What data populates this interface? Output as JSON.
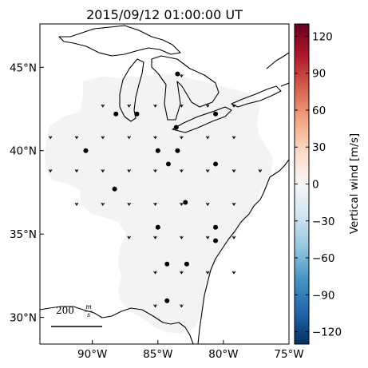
{
  "chart_data": {
    "type": "map-quiver",
    "title": "2015/09/12 01:00:00 UT",
    "xlim": [
      -94,
      -75
    ],
    "ylim": [
      28.4,
      47.6
    ],
    "x_ticks": [
      {
        "value": -90,
        "label": "90°W"
      },
      {
        "value": -85,
        "label": "85°W"
      },
      {
        "value": -80,
        "label": "80°W"
      },
      {
        "value": -75,
        "label": "75°W"
      }
    ],
    "y_ticks": [
      {
        "value": 30,
        "label": "30°N"
      },
      {
        "value": 35,
        "label": "35°N"
      },
      {
        "value": 40,
        "label": "40°N"
      },
      {
        "value": 45,
        "label": "45°N"
      }
    ],
    "colorbar": {
      "label": "Vertical wind [m/s]",
      "min": -130,
      "max": 130,
      "ticks": [
        -120,
        -90,
        -60,
        -30,
        0,
        30,
        60,
        90,
        120
      ],
      "colors": [
        "#053061",
        "#2166ac",
        "#4393c3",
        "#92c5de",
        "#d1e5f0",
        "#f7f7f7",
        "#fddbc7",
        "#f4a582",
        "#d6604d",
        "#b2182b",
        "#67001f"
      ]
    },
    "scale_arrow": {
      "label": "200",
      "unit_num": "m",
      "unit_den": "s"
    },
    "stations": [
      {
        "lon": -83.5,
        "lat": 44.6
      },
      {
        "lon": -88.2,
        "lat": 42.2
      },
      {
        "lon": -86.6,
        "lat": 42.2
      },
      {
        "lon": -83.6,
        "lat": 41.4
      },
      {
        "lon": -80.6,
        "lat": 42.2
      },
      {
        "lon": -90.5,
        "lat": 40.0
      },
      {
        "lon": -85.0,
        "lat": 40.0
      },
      {
        "lon": -83.5,
        "lat": 40.0
      },
      {
        "lon": -84.2,
        "lat": 39.2
      },
      {
        "lon": -80.6,
        "lat": 39.2
      },
      {
        "lon": -88.3,
        "lat": 37.7
      },
      {
        "lon": -82.9,
        "lat": 36.9
      },
      {
        "lon": -85.0,
        "lat": 35.4
      },
      {
        "lon": -80.6,
        "lat": 35.4
      },
      {
        "lon": -80.6,
        "lat": 34.6
      },
      {
        "lon": -84.3,
        "lat": 33.2
      },
      {
        "lon": -82.8,
        "lat": 33.2
      },
      {
        "lon": -84.3,
        "lat": 31.0
      }
    ],
    "wind_grid": {
      "rows": [
        {
          "lat": 44.5,
          "lons": [
            -83.2
          ]
        },
        {
          "lat": 42.7,
          "lons": [
            -89.2,
            -87.2,
            -85.2,
            -83.2,
            -81.2,
            -79.2
          ]
        },
        {
          "lat": 40.8,
          "lons": [
            -93.2,
            -91.2,
            -89.2,
            -87.2,
            -85.2,
            -83.2,
            -81.2,
            -79.2
          ]
        },
        {
          "lat": 38.8,
          "lons": [
            -93.2,
            -91.2,
            -89.2,
            -87.2,
            -85.2,
            -83.2,
            -81.2,
            -79.2,
            -77.2
          ]
        },
        {
          "lat": 36.8,
          "lons": [
            -91.2,
            -89.2,
            -87.2,
            -85.2,
            -83.2,
            -81.2,
            -79.2
          ]
        },
        {
          "lat": 34.8,
          "lons": [
            -87.2,
            -85.2,
            -83.2,
            -81.2,
            -79.2
          ]
        },
        {
          "lat": 32.7,
          "lons": [
            -85.2,
            -83.2,
            -81.2,
            -79.2
          ]
        },
        {
          "lat": 30.7,
          "lons": [
            -85.2,
            -83.2
          ]
        }
      ],
      "vertical_wind_mps": 0,
      "horizontal_wind_mps": {
        "east": 0,
        "north": -10
      }
    },
    "grid": false
  }
}
